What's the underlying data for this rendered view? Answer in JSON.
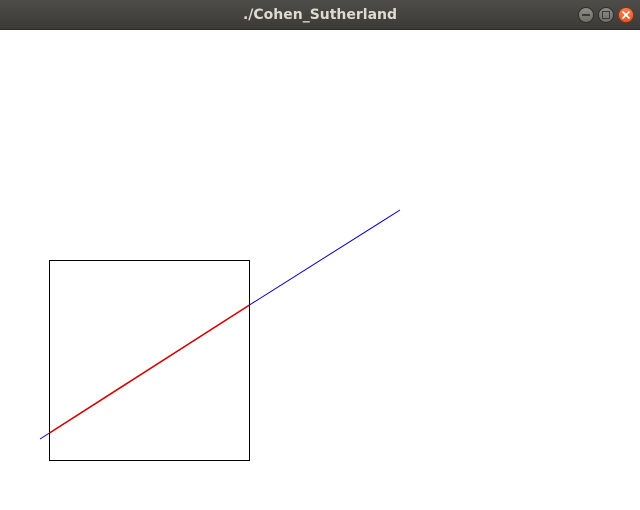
{
  "window": {
    "title": "./Cohen_Sutherland",
    "controls": {
      "minimize_icon": "minimize-icon",
      "maximize_icon": "maximize-icon",
      "close_icon": "close-icon",
      "close_color": "#e95420"
    }
  },
  "drawing": {
    "clip_window_color": "#000000",
    "outside_segment_color": "#0000c8",
    "clipped_segment_color": "#d40000"
  }
}
